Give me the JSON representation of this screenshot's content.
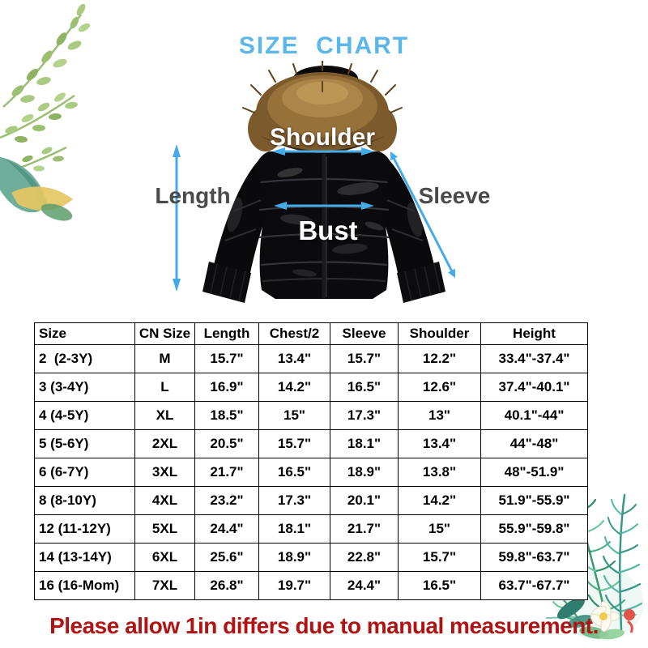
{
  "title": "SIZE  CHART",
  "diagram": {
    "shoulder_label": "Shoulder",
    "bust_label": "Bust",
    "length_label": "Length",
    "sleeve_label": "Sleeve"
  },
  "table": {
    "headers": [
      "Size",
      "CN Size",
      "Length",
      "Chest/2",
      "Sleeve",
      "Shoulder",
      "Height"
    ],
    "rows": [
      [
        "2  (2-3Y)",
        "M",
        "15.7\"",
        "13.4\"",
        "15.7\"",
        "12.2\"",
        "33.4\"-37.4\""
      ],
      [
        "3 (3-4Y)",
        "L",
        "16.9\"",
        "14.2\"",
        "16.5\"",
        "12.6\"",
        "37.4\"-40.1\""
      ],
      [
        "4 (4-5Y)",
        "XL",
        "18.5\"",
        "15\"",
        "17.3\"",
        "13\"",
        "40.1\"-44\""
      ],
      [
        "5 (5-6Y)",
        "2XL",
        "20.5\"",
        "15.7\"",
        "18.1\"",
        "13.4\"",
        "44\"-48\""
      ],
      [
        "6 (6-7Y)",
        "3XL",
        "21.7\"",
        "16.5\"",
        "18.9\"",
        "13.8\"",
        "48\"-51.9\""
      ],
      [
        "8 (8-10Y)",
        "4XL",
        "23.2\"",
        "17.3\"",
        "20.1\"",
        "14.2\"",
        "51.9\"-55.9\""
      ],
      [
        "12 (11-12Y)",
        "5XL",
        "24.4\"",
        "18.1\"",
        "21.7\"",
        "15\"",
        "55.9\"-59.8\""
      ],
      [
        "14 (13-14Y)",
        "6XL",
        "25.6\"",
        "18.9\"",
        "22.8\"",
        "15.7\"",
        "59.8\"-63.7\""
      ],
      [
        "16 (16-Mom)",
        "7XL",
        "26.8\"",
        "19.7\"",
        "24.4\"",
        "16.5\"",
        "63.7\"-67.7\""
      ]
    ]
  },
  "note": "Please allow 1in differs due to manual measurement.",
  "colors": {
    "title_blue": "#5bb7e9",
    "arrow_blue": "#45aae8",
    "note_red": "#b01312",
    "label_gray": "#4a4a4a",
    "label_white": "#ffffff"
  }
}
